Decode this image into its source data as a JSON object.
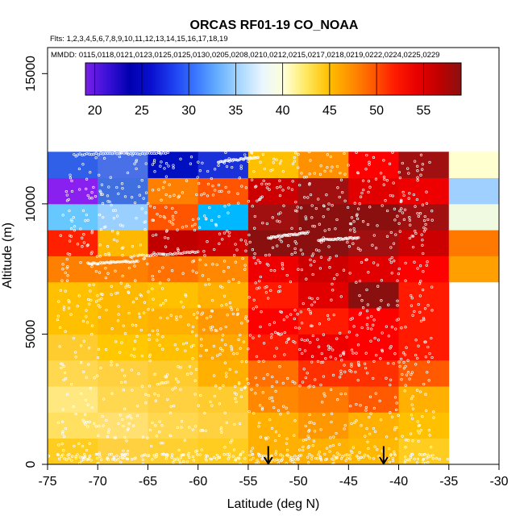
{
  "chart_data": {
    "type": "heatmap",
    "title": "ORCAS RF01-19 CO_NOAA",
    "flights_label": "Flts: 1,2,3,4,5,6,7,8,9,10,11,12,13,14,15,16,17,18,19",
    "dates_label": "MMDD: 0115,0118,0121,0123,0125,0125,0130,0205,0208,0210,0212,0215,0217,0218,0219,0222,0224,0225,0229",
    "xlabel": "Latitude (deg N)",
    "ylabel": "Altitude (m)",
    "xlim": [
      -75,
      -30
    ],
    "ylim": [
      0,
      16000
    ],
    "x_ticks": [
      -75,
      -70,
      -65,
      -60,
      -55,
      -50,
      -45,
      -40,
      -35,
      -30
    ],
    "y_ticks": [
      0,
      5000,
      10000,
      15000
    ],
    "colorbar": {
      "range": [
        19,
        59
      ],
      "ticks": [
        20,
        25,
        30,
        35,
        40,
        45,
        50,
        55
      ],
      "colors": [
        "#7a1fe8",
        "#3a10d8",
        "#0000b0",
        "#0a10d0",
        "#1e40f0",
        "#3a78ff",
        "#66b0ff",
        "#aad8ff",
        "#eaf6ff",
        "#ffffd8",
        "#ffe860",
        "#ffc000",
        "#ff9000",
        "#ff5a00",
        "#ff1a00",
        "#e80000",
        "#c00000",
        "#8a1010"
      ]
    },
    "x_bins": [
      -75,
      -70,
      -65,
      -60,
      -55,
      -50,
      -45,
      -40,
      -35
    ],
    "y_bin_edges": [
      0,
      1000,
      2000,
      3000,
      4000,
      5000,
      6000,
      7000,
      8000,
      9000,
      10000,
      11000,
      12000
    ],
    "grid_colors": [
      [
        "#ffcc20",
        "#ffd040",
        "#ffd030",
        "#ffcc20",
        "#ffb000",
        "#ffb000",
        "#ffb800",
        "#ffcc20"
      ],
      [
        "#ffe060",
        "#ffe070",
        "#ffd850",
        "#ffd040",
        "#ffb000",
        "#ff9800",
        "#ffb000",
        "#ffc000"
      ],
      [
        "#ffe880",
        "#ffd850",
        "#ffd040",
        "#ffcc30",
        "#ff8800",
        "#ff7800",
        "#ff5a00",
        "#ffb000"
      ],
      [
        "#ffd850",
        "#ffd040",
        "#ffcc30",
        "#ffb000",
        "#ff7000",
        "#ff3000",
        "#ff3000",
        "#ff5a00"
      ],
      [
        "#ffcc30",
        "#ffc800",
        "#ffc000",
        "#ffa800",
        "#ff1a00",
        "#ee0000",
        "#ff0000",
        "#ff1a00"
      ],
      [
        "#ffc000",
        "#ffb800",
        "#ffb000",
        "#ff9800",
        "#ff0000",
        "#ff1a00",
        "#ff0000",
        "#ff1a00"
      ],
      [
        "#ffc000",
        "#ffb800",
        "#ffc000",
        "#ffb000",
        "#ff1a00",
        "#e00000",
        "#8a1010",
        "#ff1a00"
      ],
      [
        "#ff8000",
        "#ff8000",
        "#ff7000",
        "#ff8800",
        "#ee0000",
        "#cc0000",
        "#e00000",
        "#ff0000"
      ],
      [
        "#ff2000",
        "#ffb800",
        "#c00000",
        "#cc0000",
        "#8a1010",
        "#8a1010",
        "#a01010",
        "#cc0000"
      ],
      [
        "#66c8ff",
        "#99d0ff",
        "#ff5500",
        "#00b8ff",
        "#a01010",
        "#8a1010",
        "#8a1010",
        "#a01010"
      ],
      [
        "#8a20f0",
        "#4070e0",
        "#ff8000",
        "#ff5500",
        "#cc0000",
        "#a01010",
        "#e00000",
        "#ee0000"
      ],
      [
        "#3060e8",
        "#4a70e8",
        "#0010c0",
        "#1a30d8",
        "#ffc000",
        "#ff9000",
        "#ff0000",
        "#a01010"
      ]
    ],
    "extra_column": {
      "x_range": [
        -35,
        -30
      ],
      "cells": [
        {
          "y": [
            7000,
            8000
          ],
          "color": "#ffa000"
        },
        {
          "y": [
            8000,
            9000
          ],
          "color": "#ff7800"
        },
        {
          "y": [
            9000,
            10000
          ],
          "color": "#f0fae0"
        },
        {
          "y": [
            10000,
            11000
          ],
          "color": "#a0d0ff"
        },
        {
          "y": [
            11000,
            12000
          ],
          "color": "#ffffd0"
        }
      ]
    },
    "annotations": [
      {
        "type": "arrow-down",
        "x": -53,
        "y_top": 700,
        "y_bottom": 0
      },
      {
        "type": "arrow-down",
        "x": -41.5,
        "y_top": 700,
        "y_bottom": 0
      }
    ]
  }
}
